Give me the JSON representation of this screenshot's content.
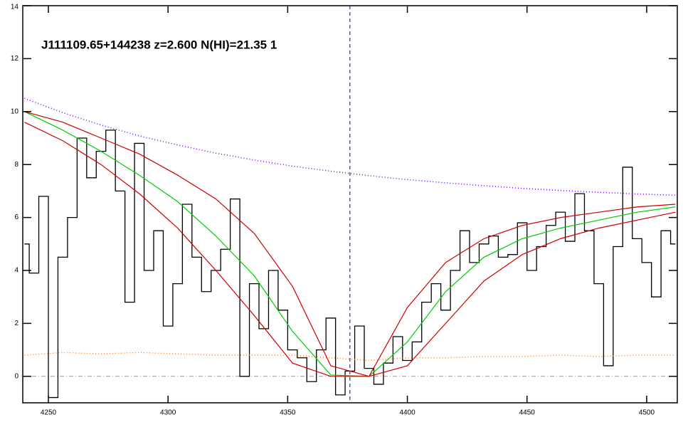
{
  "chart_data": {
    "type": "line",
    "title": "J111109.65+144238 z=2.600 N(HI)=21.35 1",
    "xlim": [
      4239.3,
      4512.8
    ],
    "ylim": [
      -1,
      14
    ],
    "xticks": [
      4250,
      4300,
      4350,
      4400,
      4450,
      4500
    ],
    "yticks": [
      0,
      2,
      4,
      6,
      8,
      10,
      12,
      14
    ],
    "vline": 4376,
    "hline": 0,
    "series": [
      {
        "name": "flux",
        "color": "#000000",
        "style": "steps",
        "x": [
          4240,
          4244,
          4248,
          4252,
          4256,
          4260,
          4264,
          4268,
          4272,
          4276,
          4280,
          4284,
          4288,
          4292,
          4296,
          4300,
          4304,
          4308,
          4312,
          4316,
          4320,
          4324,
          4328,
          4332,
          4336,
          4340,
          4344,
          4348,
          4352,
          4356,
          4360,
          4364,
          4368,
          4372,
          4376,
          4380,
          4384,
          4388,
          4392,
          4396,
          4400,
          4404,
          4408,
          4412,
          4416,
          4420,
          4424,
          4428,
          4432,
          4436,
          4440,
          4444,
          4448,
          4452,
          4456,
          4460,
          4464,
          4468,
          4472,
          4476,
          4480,
          4484,
          4488,
          4492,
          4496,
          4500,
          4504,
          4508,
          4512
        ],
        "values": [
          5.0,
          3.9,
          6.8,
          -0.8,
          4.5,
          6.0,
          9.0,
          7.5,
          8.5,
          9.3,
          7.0,
          2.8,
          8.8,
          4.0,
          5.5,
          1.9,
          3.5,
          6.5,
          4.5,
          3.2,
          4.0,
          4.8,
          6.7,
          0.0,
          3.5,
          1.8,
          4.0,
          2.5,
          1.0,
          0.7,
          -0.2,
          1.0,
          2.2,
          -0.7,
          0.2,
          1.9,
          0.3,
          -0.3,
          0.5,
          1.5,
          0.6,
          1.3,
          2.8,
          3.5,
          2.5,
          4.0,
          5.5,
          4.3,
          5.0,
          5.3,
          4.5,
          4.6,
          5.8,
          4.0,
          4.9,
          5.7,
          6.2,
          5.1,
          6.9,
          5.5,
          3.5,
          0.4,
          4.9,
          7.9,
          5.2,
          4.3,
          3.0,
          5.5,
          5.0
        ]
      },
      {
        "name": "continuum",
        "color": "#6a00ff",
        "style": "dotted",
        "x": [
          4240,
          4256,
          4272,
          4288,
          4304,
          4320,
          4336,
          4352,
          4368,
          4384,
          4400,
          4416,
          4432,
          4448,
          4464,
          4480,
          4496,
          4512
        ],
        "values": [
          10.5,
          9.96,
          9.49,
          9.08,
          8.74,
          8.43,
          8.17,
          7.94,
          7.75,
          7.58,
          7.43,
          7.31,
          7.2,
          7.1,
          7.02,
          6.95,
          6.89,
          6.84
        ]
      },
      {
        "name": "error",
        "color": "#f08030",
        "style": "dotted",
        "x": [
          4240,
          4256,
          4272,
          4288,
          4304,
          4320,
          4336,
          4352,
          4368,
          4384,
          4400,
          4416,
          4432,
          4448,
          4464,
          4480,
          4496,
          4512
        ],
        "values": [
          0.8,
          0.9,
          0.85,
          0.9,
          0.85,
          0.8,
          0.8,
          0.8,
          0.7,
          0.6,
          0.7,
          0.7,
          0.75,
          0.75,
          0.8,
          0.75,
          0.8,
          0.8
        ]
      },
      {
        "name": "fit",
        "color": "#00cc00",
        "style": "solid",
        "x": [
          4240,
          4256,
          4272,
          4288,
          4304,
          4320,
          4336,
          4352,
          4368,
          4384,
          4400,
          4416,
          4432,
          4448,
          4464,
          4480,
          4496,
          4512
        ],
        "values": [
          10.0,
          9.3,
          8.5,
          7.6,
          6.6,
          5.3,
          3.8,
          1.7,
          0.05,
          0.0,
          1.3,
          3.2,
          4.5,
          5.2,
          5.6,
          5.9,
          6.2,
          6.4
        ]
      },
      {
        "name": "fit-upper",
        "color": "#cc0000",
        "style": "solid",
        "x": [
          4240,
          4256,
          4272,
          4288,
          4304,
          4320,
          4336,
          4352,
          4368,
          4384,
          4400,
          4416,
          4432,
          4448,
          4464,
          4480,
          4496,
          4512
        ],
        "values": [
          10.0,
          9.6,
          9.0,
          8.4,
          7.6,
          6.7,
          5.4,
          3.4,
          0.4,
          0.0,
          2.6,
          4.3,
          5.2,
          5.7,
          6.0,
          6.2,
          6.4,
          6.5
        ]
      },
      {
        "name": "fit-lower",
        "color": "#cc0000",
        "style": "solid",
        "x": [
          4240,
          4256,
          4272,
          4288,
          4304,
          4320,
          4336,
          4352,
          4368,
          4384,
          4400,
          4416,
          4432,
          4448,
          4464,
          4480,
          4496,
          4512
        ],
        "values": [
          9.6,
          8.9,
          8.0,
          6.9,
          5.6,
          4.0,
          2.3,
          0.5,
          0.0,
          0.0,
          0.4,
          2.0,
          3.6,
          4.6,
          5.2,
          5.6,
          5.9,
          6.2
        ]
      }
    ]
  }
}
